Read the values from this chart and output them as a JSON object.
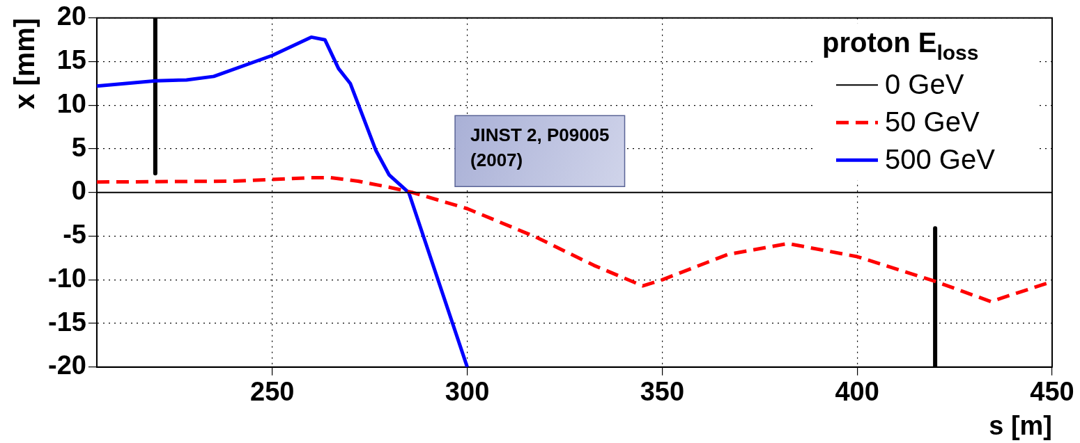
{
  "chart_data": {
    "type": "line",
    "xlabel": "s [m]",
    "ylabel": "x [mm]",
    "legend_title": "proton E$_{loss}$",
    "legend": "top right",
    "grid": true,
    "marker": "none",
    "xlim": [
      205,
      450
    ],
    "xticks": [
      250,
      300,
      350,
      400,
      450
    ],
    "ylim": [
      -20,
      20
    ],
    "yticks": [
      -20,
      -15,
      -10,
      -5,
      0,
      5,
      10,
      15,
      20
    ],
    "annotations": [
      "JINST 2, P09005 (2007)"
    ],
    "series": [
      {
        "name": "0 GeV",
        "color": "#000000",
        "line_style": "solid",
        "x": [
          205,
          450
        ],
        "values": [
          0,
          0
        ]
      },
      {
        "name": "50 GeV",
        "color": "#ff0000",
        "line_style": "dashed",
        "x": [
          205,
          240,
          260,
          265,
          272,
          280,
          286,
          300,
          317.6,
          332.5,
          345,
          350,
          366.8,
          382.3,
          400,
          419.5,
          434.3,
          450
        ],
        "values": [
          1.2,
          1.3,
          1.7,
          1.7,
          1.3,
          0.6,
          0,
          -1.85,
          -5.1,
          -8.35,
          -10.7,
          -10,
          -7.1,
          -5.85,
          -7.35,
          -10.1,
          -12.5,
          -10.2
        ]
      },
      {
        "name": "500 GeV",
        "color": "#0000ff",
        "line_style": "solid",
        "x": [
          205,
          220,
          228,
          235,
          250,
          260,
          263.5,
          267,
          270,
          276.6,
          280,
          285,
          300
        ],
        "values": [
          12.2,
          12.8,
          12.9,
          13.3,
          15.7,
          17.8,
          17.5,
          14.2,
          12.5,
          4.8,
          2,
          0,
          -20
        ]
      },
      {
        "color": "#000000",
        "line_style": "solid",
        "x": [
          220,
          220
        ],
        "values": [
          20,
          2.2
        ]
      },
      {
        "color": "#000000",
        "line_style": "solid",
        "x": [
          420,
          420
        ],
        "values": [
          -4.1,
          -20
        ]
      }
    ]
  }
}
